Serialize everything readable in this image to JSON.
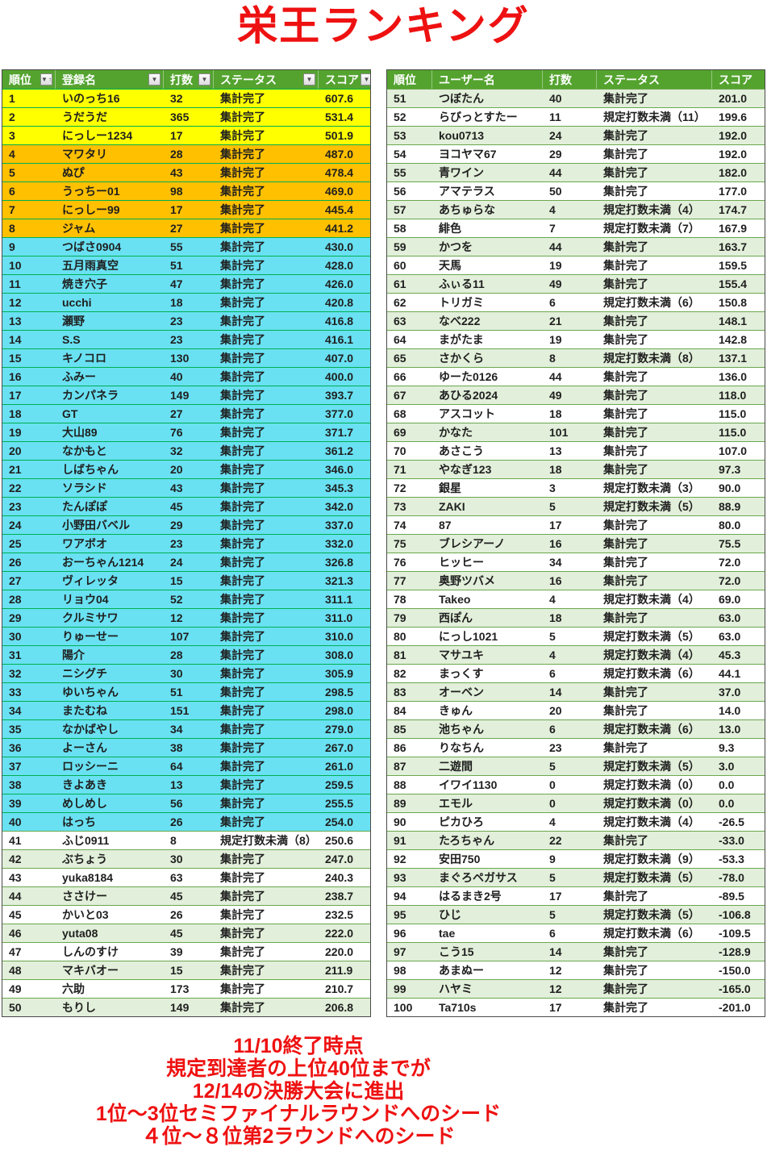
{
  "title": "栄王ランキング",
  "colors": {
    "accent_red": "#ee1111",
    "header_green": "#54a32f",
    "rank_1_3_yellow": "#ffff00",
    "rank_4_8_orange": "#ffc000",
    "rank_9_40_cyan": "#69e1f2",
    "band_light_green": "#e2efda",
    "grid_bright_green": "#00b050",
    "grid_mid_green": "#6aa84f"
  },
  "row_fields": [
    "rank",
    "name",
    "strokes",
    "status",
    "score",
    "band"
  ],
  "tables": [
    {
      "id": "table-left",
      "name": "ranking-table-1-50",
      "columns": [
        "順位",
        "登録名",
        "打数",
        "ステータス",
        "スコア"
      ],
      "col_ids": [
        "rank",
        "name",
        "strokes",
        "status",
        "score"
      ],
      "has_filters": true,
      "sorted_column": 0,
      "rows": [
        [
          "1",
          "いのっち16",
          "32",
          "集計完了",
          "607.6",
          "yellow"
        ],
        [
          "2",
          "うだうだ",
          "365",
          "集計完了",
          "531.4",
          "yellow"
        ],
        [
          "3",
          "にっしー1234",
          "17",
          "集計完了",
          "501.9",
          "yellow"
        ],
        [
          "4",
          "マワタリ",
          "28",
          "集計完了",
          "487.0",
          "orange"
        ],
        [
          "5",
          "ぬぴ",
          "43",
          "集計完了",
          "478.4",
          "orange"
        ],
        [
          "6",
          "うっちー01",
          "98",
          "集計完了",
          "469.0",
          "orange"
        ],
        [
          "7",
          "にっしー99",
          "17",
          "集計完了",
          "445.4",
          "orange"
        ],
        [
          "8",
          "ジャム",
          "27",
          "集計完了",
          "441.2",
          "orange"
        ],
        [
          "9",
          "つばさ0904",
          "55",
          "集計完了",
          "430.0",
          "cyan"
        ],
        [
          "10",
          "五月雨真空",
          "51",
          "集計完了",
          "428.0",
          "cyan"
        ],
        [
          "11",
          "焼き穴子",
          "47",
          "集計完了",
          "426.0",
          "cyan"
        ],
        [
          "12",
          "ucchi",
          "18",
          "集計完了",
          "420.8",
          "cyan"
        ],
        [
          "13",
          "瀬野",
          "23",
          "集計完了",
          "416.8",
          "cyan"
        ],
        [
          "14",
          "S.S",
          "23",
          "集計完了",
          "416.1",
          "cyan"
        ],
        [
          "15",
          "キノコロ",
          "130",
          "集計完了",
          "407.0",
          "cyan"
        ],
        [
          "16",
          "ふみー",
          "40",
          "集計完了",
          "400.0",
          "cyan"
        ],
        [
          "17",
          "カンパネラ",
          "149",
          "集計完了",
          "393.7",
          "cyan"
        ],
        [
          "18",
          "GT",
          "27",
          "集計完了",
          "377.0",
          "cyan"
        ],
        [
          "19",
          "大山89",
          "76",
          "集計完了",
          "371.7",
          "cyan"
        ],
        [
          "20",
          "なかもと",
          "32",
          "集計完了",
          "361.2",
          "cyan"
        ],
        [
          "21",
          "しばちゃん",
          "20",
          "集計完了",
          "346.0",
          "cyan"
        ],
        [
          "22",
          "ソラシド",
          "43",
          "集計完了",
          "345.3",
          "cyan"
        ],
        [
          "23",
          "たんぽぽ",
          "45",
          "集計完了",
          "342.0",
          "cyan"
        ],
        [
          "24",
          "小野田バベル",
          "29",
          "集計完了",
          "337.0",
          "cyan"
        ],
        [
          "25",
          "ワアボオ",
          "23",
          "集計完了",
          "332.0",
          "cyan"
        ],
        [
          "26",
          "おーちゃん1214",
          "24",
          "集計完了",
          "326.8",
          "cyan"
        ],
        [
          "27",
          "ヴィレッタ",
          "15",
          "集計完了",
          "321.3",
          "cyan"
        ],
        [
          "28",
          "リョウ04",
          "52",
          "集計完了",
          "311.1",
          "cyan"
        ],
        [
          "29",
          "クルミサワ",
          "12",
          "集計完了",
          "311.0",
          "cyan"
        ],
        [
          "30",
          "りゅーせー",
          "107",
          "集計完了",
          "310.0",
          "cyan"
        ],
        [
          "31",
          "陽介",
          "28",
          "集計完了",
          "308.0",
          "cyan"
        ],
        [
          "32",
          "ニシグチ",
          "30",
          "集計完了",
          "305.9",
          "cyan"
        ],
        [
          "33",
          "ゆいちゃん",
          "51",
          "集計完了",
          "298.5",
          "cyan"
        ],
        [
          "34",
          "またむね",
          "151",
          "集計完了",
          "298.0",
          "cyan"
        ],
        [
          "35",
          "なかばやし",
          "34",
          "集計完了",
          "279.0",
          "cyan"
        ],
        [
          "36",
          "よーさん",
          "38",
          "集計完了",
          "267.0",
          "cyan"
        ],
        [
          "37",
          "ロッシーニ",
          "64",
          "集計完了",
          "261.0",
          "cyan"
        ],
        [
          "38",
          "きよあき",
          "13",
          "集計完了",
          "259.5",
          "cyan"
        ],
        [
          "39",
          "めしめし",
          "56",
          "集計完了",
          "255.5",
          "cyan"
        ],
        [
          "40",
          "はっち",
          "26",
          "集計完了",
          "254.0",
          "cyan"
        ],
        [
          "41",
          "ふじ0911",
          "8",
          "規定打数未満（8）",
          "250.6",
          "white"
        ],
        [
          "42",
          "ぶちょう",
          "30",
          "集計完了",
          "247.0",
          "green"
        ],
        [
          "43",
          "yuka8184",
          "63",
          "集計完了",
          "240.3",
          "white"
        ],
        [
          "44",
          "ささけー",
          "45",
          "集計完了",
          "238.7",
          "green"
        ],
        [
          "45",
          "かいと03",
          "26",
          "集計完了",
          "232.5",
          "white"
        ],
        [
          "46",
          "yuta08",
          "45",
          "集計完了",
          "222.0",
          "green"
        ],
        [
          "47",
          "しんのすけ",
          "39",
          "集計完了",
          "220.0",
          "white"
        ],
        [
          "48",
          "マキバオー",
          "15",
          "集計完了",
          "211.9",
          "green"
        ],
        [
          "49",
          "六助",
          "173",
          "集計完了",
          "210.7",
          "white"
        ],
        [
          "50",
          "もりし",
          "149",
          "集計完了",
          "206.8",
          "green"
        ]
      ]
    },
    {
      "id": "table-right",
      "name": "ranking-table-51-100",
      "columns": [
        "順位",
        "ユーザー名",
        "打数",
        "ステータス",
        "スコア"
      ],
      "col_ids": [
        "rank",
        "name",
        "strokes",
        "status",
        "score"
      ],
      "has_filters": false,
      "sorted_column": -1,
      "rows": [
        [
          "51",
          "つぼたん",
          "40",
          "集計完了",
          "201.0",
          "green"
        ],
        [
          "52",
          "らびっとすたー",
          "11",
          "規定打数未満（11）",
          "199.6",
          "white"
        ],
        [
          "53",
          "kou0713",
          "24",
          "集計完了",
          "192.0",
          "green"
        ],
        [
          "54",
          "ヨコヤマ67",
          "29",
          "集計完了",
          "192.0",
          "white"
        ],
        [
          "55",
          "青ワイン",
          "44",
          "集計完了",
          "182.0",
          "green"
        ],
        [
          "56",
          "アマテラス",
          "50",
          "集計完了",
          "177.0",
          "white"
        ],
        [
          "57",
          "あちゅらな",
          "4",
          "規定打数未満（4）",
          "174.7",
          "green"
        ],
        [
          "58",
          "緋色",
          "7",
          "規定打数未満（7）",
          "167.9",
          "white"
        ],
        [
          "59",
          "かつを",
          "44",
          "集計完了",
          "163.7",
          "green"
        ],
        [
          "60",
          "天馬",
          "19",
          "集計完了",
          "159.5",
          "white"
        ],
        [
          "61",
          "ふぃる11",
          "49",
          "集計完了",
          "155.4",
          "green"
        ],
        [
          "62",
          "トリガミ",
          "6",
          "規定打数未満（6）",
          "150.8",
          "white"
        ],
        [
          "63",
          "なべ222",
          "21",
          "集計完了",
          "148.1",
          "green"
        ],
        [
          "64",
          "まがたま",
          "19",
          "集計完了",
          "142.8",
          "white"
        ],
        [
          "65",
          "さかくら",
          "8",
          "規定打数未満（8）",
          "137.1",
          "green"
        ],
        [
          "66",
          "ゆーた0126",
          "44",
          "集計完了",
          "136.0",
          "white"
        ],
        [
          "67",
          "あひる2024",
          "49",
          "集計完了",
          "118.0",
          "green"
        ],
        [
          "68",
          "アスコット",
          "18",
          "集計完了",
          "115.0",
          "white"
        ],
        [
          "69",
          "かなた",
          "101",
          "集計完了",
          "115.0",
          "green"
        ],
        [
          "70",
          "あさこう",
          "13",
          "集計完了",
          "107.0",
          "white"
        ],
        [
          "71",
          "やなぎ123",
          "18",
          "集計完了",
          "97.3",
          "green"
        ],
        [
          "72",
          "銀星",
          "3",
          "規定打数未満（3）",
          "90.0",
          "white"
        ],
        [
          "73",
          "ZAKI",
          "5",
          "規定打数未満（5）",
          "88.9",
          "green"
        ],
        [
          "74",
          "87",
          "17",
          "集計完了",
          "80.0",
          "white"
        ],
        [
          "75",
          "ブレシアーノ",
          "16",
          "集計完了",
          "75.5",
          "green"
        ],
        [
          "76",
          "ヒッヒー",
          "34",
          "集計完了",
          "72.0",
          "white"
        ],
        [
          "77",
          "奥野ツバメ",
          "16",
          "集計完了",
          "72.0",
          "green"
        ],
        [
          "78",
          "Takeo",
          "4",
          "規定打数未満（4）",
          "69.0",
          "white"
        ],
        [
          "79",
          "西ぽん",
          "18",
          "集計完了",
          "63.0",
          "green"
        ],
        [
          "80",
          "にっし1021",
          "5",
          "規定打数未満（5）",
          "63.0",
          "white"
        ],
        [
          "81",
          "マサユキ",
          "4",
          "規定打数未満（4）",
          "45.3",
          "green"
        ],
        [
          "82",
          "まっくす",
          "6",
          "規定打数未満（6）",
          "44.1",
          "white"
        ],
        [
          "83",
          "オーベン",
          "14",
          "集計完了",
          "37.0",
          "green"
        ],
        [
          "84",
          "きゅん",
          "20",
          "集計完了",
          "14.0",
          "white"
        ],
        [
          "85",
          "池ちゃん",
          "6",
          "規定打数未満（6）",
          "13.0",
          "green"
        ],
        [
          "86",
          "りなちん",
          "23",
          "集計完了",
          "9.3",
          "white"
        ],
        [
          "87",
          "二遊間",
          "5",
          "規定打数未満（5）",
          "3.0",
          "green"
        ],
        [
          "88",
          "イワイ1130",
          "0",
          "規定打数未満（0）",
          "0.0",
          "white"
        ],
        [
          "89",
          "エモル",
          "0",
          "規定打数未満（0）",
          "0.0",
          "green"
        ],
        [
          "90",
          "ピカひろ",
          "4",
          "規定打数未満（4）",
          "-26.5",
          "white"
        ],
        [
          "91",
          "たろちゃん",
          "22",
          "集計完了",
          "-33.0",
          "green"
        ],
        [
          "92",
          "安田750",
          "9",
          "規定打数未満（9）",
          "-53.3",
          "white"
        ],
        [
          "93",
          "まぐろペガサス",
          "5",
          "規定打数未満（5）",
          "-78.0",
          "green"
        ],
        [
          "94",
          "はるまき2号",
          "17",
          "集計完了",
          "-89.5",
          "white"
        ],
        [
          "95",
          "ひじ",
          "5",
          "規定打数未満（5）",
          "-106.8",
          "green"
        ],
        [
          "96",
          "tae",
          "6",
          "規定打数未満（6）",
          "-109.5",
          "white"
        ],
        [
          "97",
          "こう15",
          "14",
          "集計完了",
          "-128.9",
          "green"
        ],
        [
          "98",
          "あまぬー",
          "12",
          "集計完了",
          "-150.0",
          "white"
        ],
        [
          "99",
          "ハヤミ",
          "12",
          "集計完了",
          "-165.0",
          "green"
        ],
        [
          "100",
          "Ta710s",
          "17",
          "集計完了",
          "-201.0",
          "white"
        ]
      ]
    }
  ],
  "footer": {
    "lines": [
      "11/10終了時点",
      "規定到達者の上位40位までが",
      "12/14の決勝大会に進出",
      "1位～3位セミファイナルラウンドへのシード",
      "４位～８位第2ラウンドへのシード"
    ]
  }
}
